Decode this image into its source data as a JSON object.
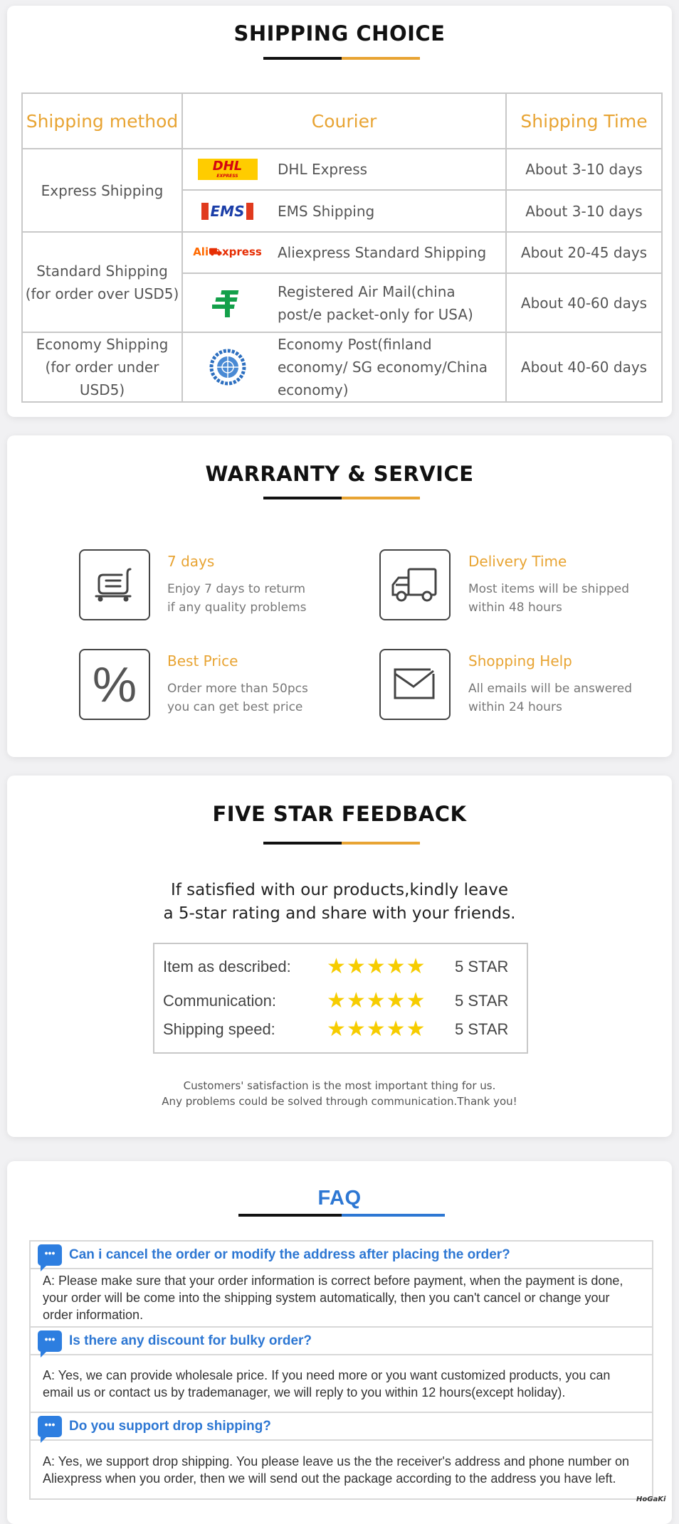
{
  "shipping": {
    "title": "SHIPPING CHOICE",
    "accent": "#e8a433",
    "headers": [
      "Shipping method",
      "Courier",
      "Shipping Time"
    ],
    "groups": [
      {
        "method": "Express Shipping",
        "rows": [
          {
            "logo": "DHL",
            "logo_sub": "EXPRESS",
            "courier": "DHL Express",
            "time": "About 3-10 days"
          },
          {
            "logo": "EMS",
            "courier": "EMS Shipping",
            "time": "About 3-10 days"
          }
        ]
      },
      {
        "method": "Standard Shipping",
        "method_note": "(for order over USD5)",
        "rows": [
          {
            "logo": "AliExpress",
            "logo_a": "Ali",
            "logo_b": "xpress",
            "courier": "Aliexpress Standard Shipping",
            "time": "About 20-45 days"
          },
          {
            "logo": "china-post-icon",
            "courier": "Registered Air Mail(china post/e packet-only for USA)",
            "time": "About 40-60 days"
          }
        ]
      },
      {
        "method": "Economy Shipping",
        "method_note": "(for order under USD5)",
        "rows": [
          {
            "logo": "un-emblem-icon",
            "courier": "Economy Post(finland economy/ SG economy/China economy)",
            "time": "About 40-60 days"
          }
        ]
      }
    ]
  },
  "warranty": {
    "title": "WARRANTY & SERVICE",
    "items": [
      {
        "icon": "cart-icon",
        "title": "7 days",
        "line1": "Enjoy 7 days to returm",
        "line2": "if any quality problems"
      },
      {
        "icon": "truck-icon",
        "title": "Delivery Time",
        "line1": "Most items will be shipped",
        "line2": "within 48 hours"
      },
      {
        "icon": "percent-icon",
        "title": "Best Price",
        "line1": "Order more than 50pcs",
        "line2": "you can get best price"
      },
      {
        "icon": "envelope-icon",
        "title": "Shopping Help",
        "line1": "All emails will be answered",
        "line2": "within 24 hours"
      }
    ]
  },
  "feedback": {
    "title": "FIVE STAR FEEDBACK",
    "line1": "If satisfied with our products,kindly leave",
    "line2": "a 5-star rating and share with your friends.",
    "ratings": [
      {
        "label": "Item as described:",
        "stars": 5,
        "text": "5 STAR"
      },
      {
        "label": "Communication:",
        "stars": 5,
        "text": "5 STAR"
      },
      {
        "label": "Shipping speed:",
        "stars": 5,
        "text": "5 STAR"
      }
    ],
    "footer1": "Customers' satisfaction is the most important thing for us.",
    "footer2": "Any problems could be solved through communication.Thank you!"
  },
  "faq": {
    "title": "FAQ",
    "accent": "#2d77d3",
    "items": [
      {
        "q": "Can i cancel the order or modify the address after placing the order?",
        "a": "A: Please make sure that your order information is correct before payment, when the payment is done, your order will be come into the shipping system automatically, then you can't cancel or change your order information."
      },
      {
        "q": "Is there any discount for bulky order?",
        "a": "A: Yes, we can provide wholesale price. If you need more or you want customized products, you can email us or contact us by trademanager, we will reply to you within 12 hours(except holiday)."
      },
      {
        "q": "Do you support drop shipping?",
        "a": "A: Yes, we support drop shipping. You please leave us the the receiver's address and phone number on Aliexpress when you order, then we will send out the package according to the address you have left."
      }
    ]
  },
  "watermark": "HoGaKi"
}
